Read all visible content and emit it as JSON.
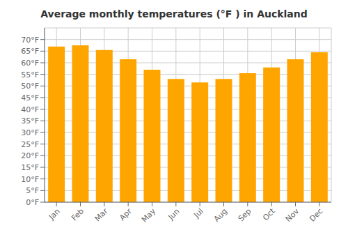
{
  "chart_data": {
    "type": "bar",
    "title": "Average monthly temperatures (°F ) in Auckland",
    "categories": [
      "Jan",
      "Feb",
      "Mar",
      "Apr",
      "May",
      "Jun",
      "Jul",
      "Aug",
      "Sep",
      "Oct",
      "Nov",
      "Dec"
    ],
    "values": [
      67,
      67.5,
      65.5,
      61.5,
      57,
      53,
      51.5,
      53,
      55.5,
      58,
      61.5,
      64.5
    ],
    "color": "#FFA500",
    "ylim": [
      0,
      75
    ],
    "yticks": [
      {
        "value": 0,
        "label": "0°F"
      },
      {
        "value": 5,
        "label": "5°F"
      },
      {
        "value": 10,
        "label": "10°F"
      },
      {
        "value": 15,
        "label": "15°F"
      },
      {
        "value": 20,
        "label": "20°F"
      },
      {
        "value": 25,
        "label": "25°F"
      },
      {
        "value": 30,
        "label": "30°F"
      },
      {
        "value": 35,
        "label": "35°F"
      },
      {
        "value": 40,
        "label": "40°F"
      },
      {
        "value": 45,
        "label": "45°F"
      },
      {
        "value": 50,
        "label": "50°F"
      },
      {
        "value": 55,
        "label": "55°F"
      },
      {
        "value": 60,
        "label": "60°F"
      },
      {
        "value": 65,
        "label": "65°F"
      },
      {
        "value": 70,
        "label": "70°F"
      }
    ],
    "grid": true
  }
}
